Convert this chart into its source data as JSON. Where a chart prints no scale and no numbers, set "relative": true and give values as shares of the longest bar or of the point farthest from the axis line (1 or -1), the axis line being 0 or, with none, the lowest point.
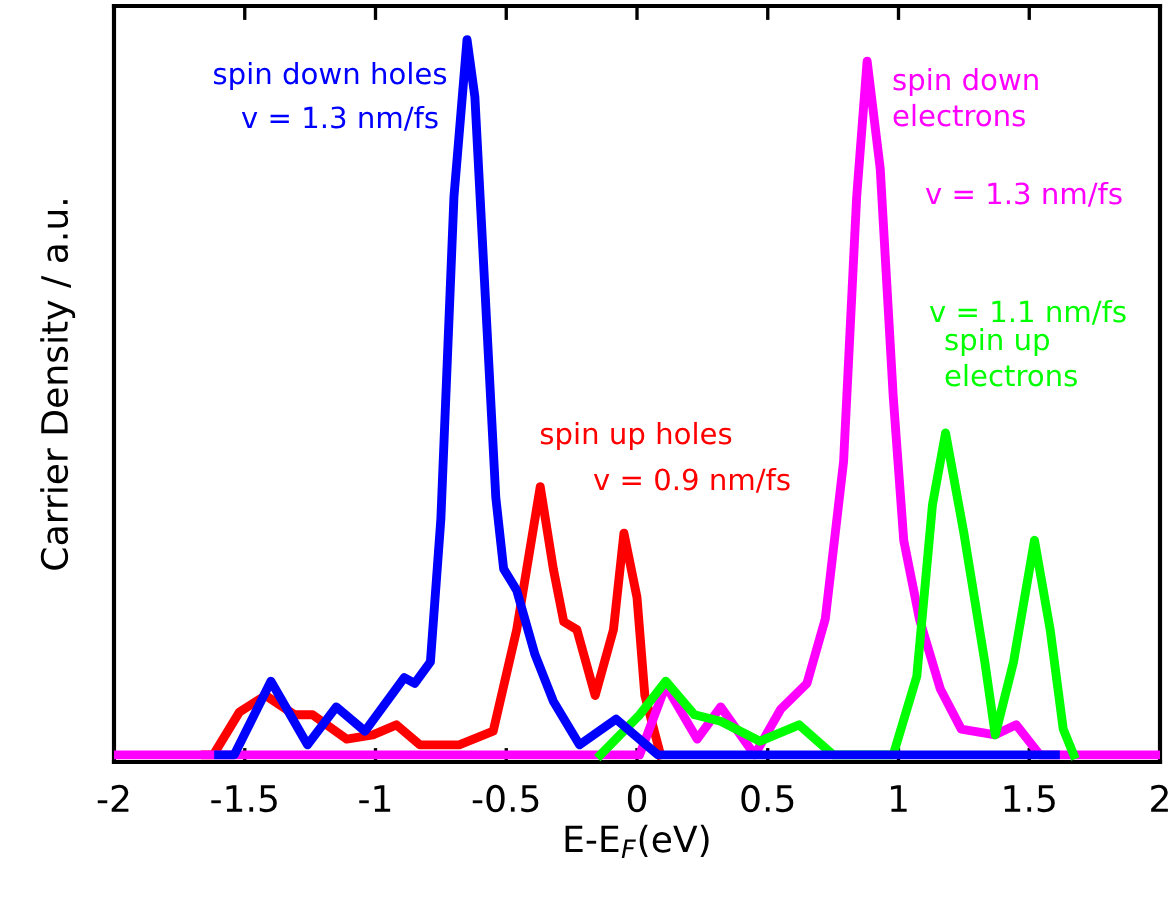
{
  "chart_data": {
    "type": "line",
    "relative": true,
    "xlabel": "E-E$_{F}$(eV)",
    "ylabel": "Carrier Density / a.u.",
    "xlim": [
      -2,
      2
    ],
    "xticks": [
      -2,
      -1.5,
      -1,
      -0.5,
      0,
      0.5,
      1,
      1.5,
      2
    ],
    "grid": false,
    "legend": false,
    "marker": "none",
    "line_style": "solid",
    "annotations": [
      "v = 0.9 nm/fs",
      "v = 1.3 nm/fs",
      "v = 1.1 nm/fs",
      "v = 1.3 nm/fs"
    ],
    "series": [
      {
        "name": "spin up holes",
        "color": "#ff0000",
        "x": [
          -1.65,
          -1.62,
          -1.52,
          -1.42,
          -1.31,
          -1.24,
          -1.11,
          -1.01,
          -0.92,
          -0.83,
          -0.68,
          -0.55,
          -0.46,
          -0.37,
          -0.32,
          -0.28,
          -0.23,
          -0.16,
          -0.09,
          -0.05,
          0.0,
          0.03,
          0.09
        ],
        "values": [
          0,
          0,
          0.06,
          0.083,
          0.056,
          0.056,
          0.022,
          0.028,
          0.042,
          0.014,
          0.014,
          0.033,
          0.175,
          0.375,
          0.26,
          0.186,
          0.175,
          0.083,
          0.175,
          0.31,
          0.22,
          0.083,
          0
        ]
      },
      {
        "name": "spin down electrons",
        "color": "#ff00ff",
        "x": [
          -2,
          0.01,
          0.11,
          0.23,
          0.32,
          0.45,
          0.55,
          0.65,
          0.72,
          0.79,
          0.84,
          0.88,
          0.93,
          0.98,
          1.02,
          1.08,
          1.16,
          1.24,
          1.37,
          1.45,
          1.54,
          2
        ],
        "values": [
          0,
          0,
          0.097,
          0.022,
          0.067,
          0,
          0.064,
          0.1,
          0.19,
          0.41,
          0.78,
          0.97,
          0.82,
          0.5,
          0.3,
          0.19,
          0.092,
          0.036,
          0.028,
          0.042,
          0,
          0
        ]
      },
      {
        "name": "spin up electrons",
        "color": "#00ff00",
        "x": [
          -0.14,
          0.01,
          0.11,
          0.22,
          0.32,
          0.47,
          0.62,
          0.75,
          0.98,
          1.07,
          1.13,
          1.18,
          1.25,
          1.33,
          1.37,
          1.44,
          1.52,
          1.58,
          1.63,
          1.67
        ],
        "values": [
          0,
          0.056,
          0.103,
          0.056,
          0.047,
          0.019,
          0.042,
          0,
          0,
          0.11,
          0.35,
          0.45,
          0.31,
          0.13,
          0.028,
          0.13,
          0.3,
          0.175,
          0.036,
          0
        ]
      },
      {
        "name": "spin down holes",
        "color": "#0000ff",
        "x": [
          -1.6,
          -1.54,
          -1.4,
          -1.26,
          -1.15,
          -1.04,
          -0.89,
          -0.85,
          -0.79,
          -0.75,
          -0.7,
          -0.65,
          -0.62,
          -0.58,
          -0.54,
          -0.51,
          -0.46,
          -0.39,
          -0.32,
          -0.22,
          -0.08,
          -0.01,
          0.08,
          1.6
        ],
        "values": [
          0,
          0,
          0.103,
          0.014,
          0.067,
          0.033,
          0.108,
          0.1,
          0.13,
          0.33,
          0.78,
          1.0,
          0.92,
          0.64,
          0.36,
          0.26,
          0.23,
          0.14,
          0.075,
          0.014,
          0.05,
          0.028,
          0,
          0
        ]
      }
    ]
  }
}
